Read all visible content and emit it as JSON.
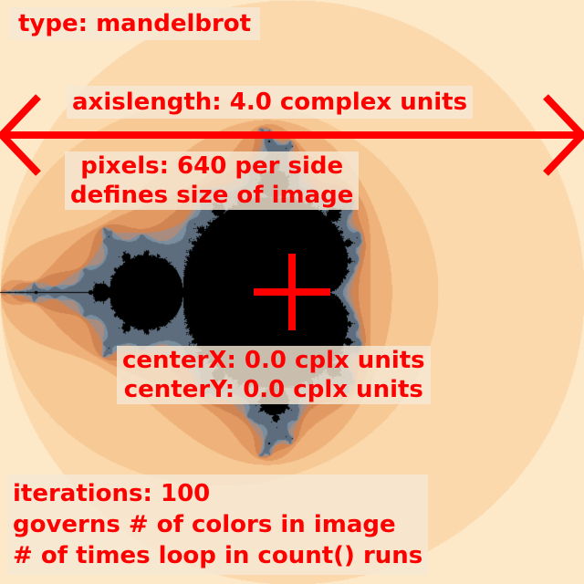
{
  "labels": {
    "type": "type: mandelbrot",
    "axis": "axislength: 4.0 complex units",
    "pixels_line1": "pixels: 640 per side",
    "pixels_line2": "defines size of image",
    "centerx": "centerX: 0.0 cplx units",
    "centery": "centerY: 0.0 cplx units",
    "iter_line1": "iterations: 100",
    "iter_line2": "governs # of colors in image",
    "iter_line3": "# of times loop in count() runs"
  },
  "fractal": {
    "type": "mandelbrot",
    "center_x": 0.0,
    "center_y": 0.0,
    "axis_length": 4.0,
    "iterations": 100,
    "palette": [
      "#fef8ee",
      "#fde8c8",
      "#fbd9ac",
      "#f6c995",
      "#eeb27a",
      "#e39a62",
      "#d08452",
      "#a88c80",
      "#7a8ea0",
      "#5d6d7d"
    ],
    "set_color": "#000000"
  },
  "colors": {
    "annotation": "#ff0000"
  }
}
